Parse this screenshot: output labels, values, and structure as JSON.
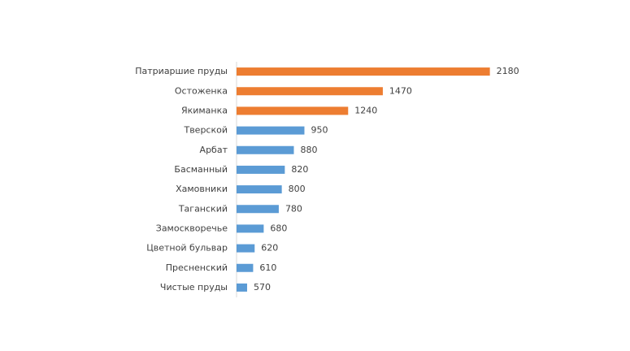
{
  "chart_data": {
    "type": "bar",
    "orientation": "horizontal",
    "categories": [
      "Патриаршие пруды",
      "Остоженка",
      "Якиманка",
      "Тверской",
      "Арбат",
      "Басманный",
      "Хамовники",
      "Таганский",
      "Замоскворечье",
      "Цветной бульвар",
      "Пресненский",
      "Чистые пруды"
    ],
    "values": [
      2180,
      1470,
      1240,
      950,
      880,
      820,
      800,
      780,
      680,
      620,
      610,
      570
    ],
    "colors": [
      "#ed7d31",
      "#ed7d31",
      "#ed7d31",
      "#5b9bd5",
      "#5b9bd5",
      "#5b9bd5",
      "#5b9bd5",
      "#5b9bd5",
      "#5b9bd5",
      "#5b9bd5",
      "#5b9bd5",
      "#5b9bd5"
    ],
    "xlim": [
      500,
      2500
    ]
  }
}
